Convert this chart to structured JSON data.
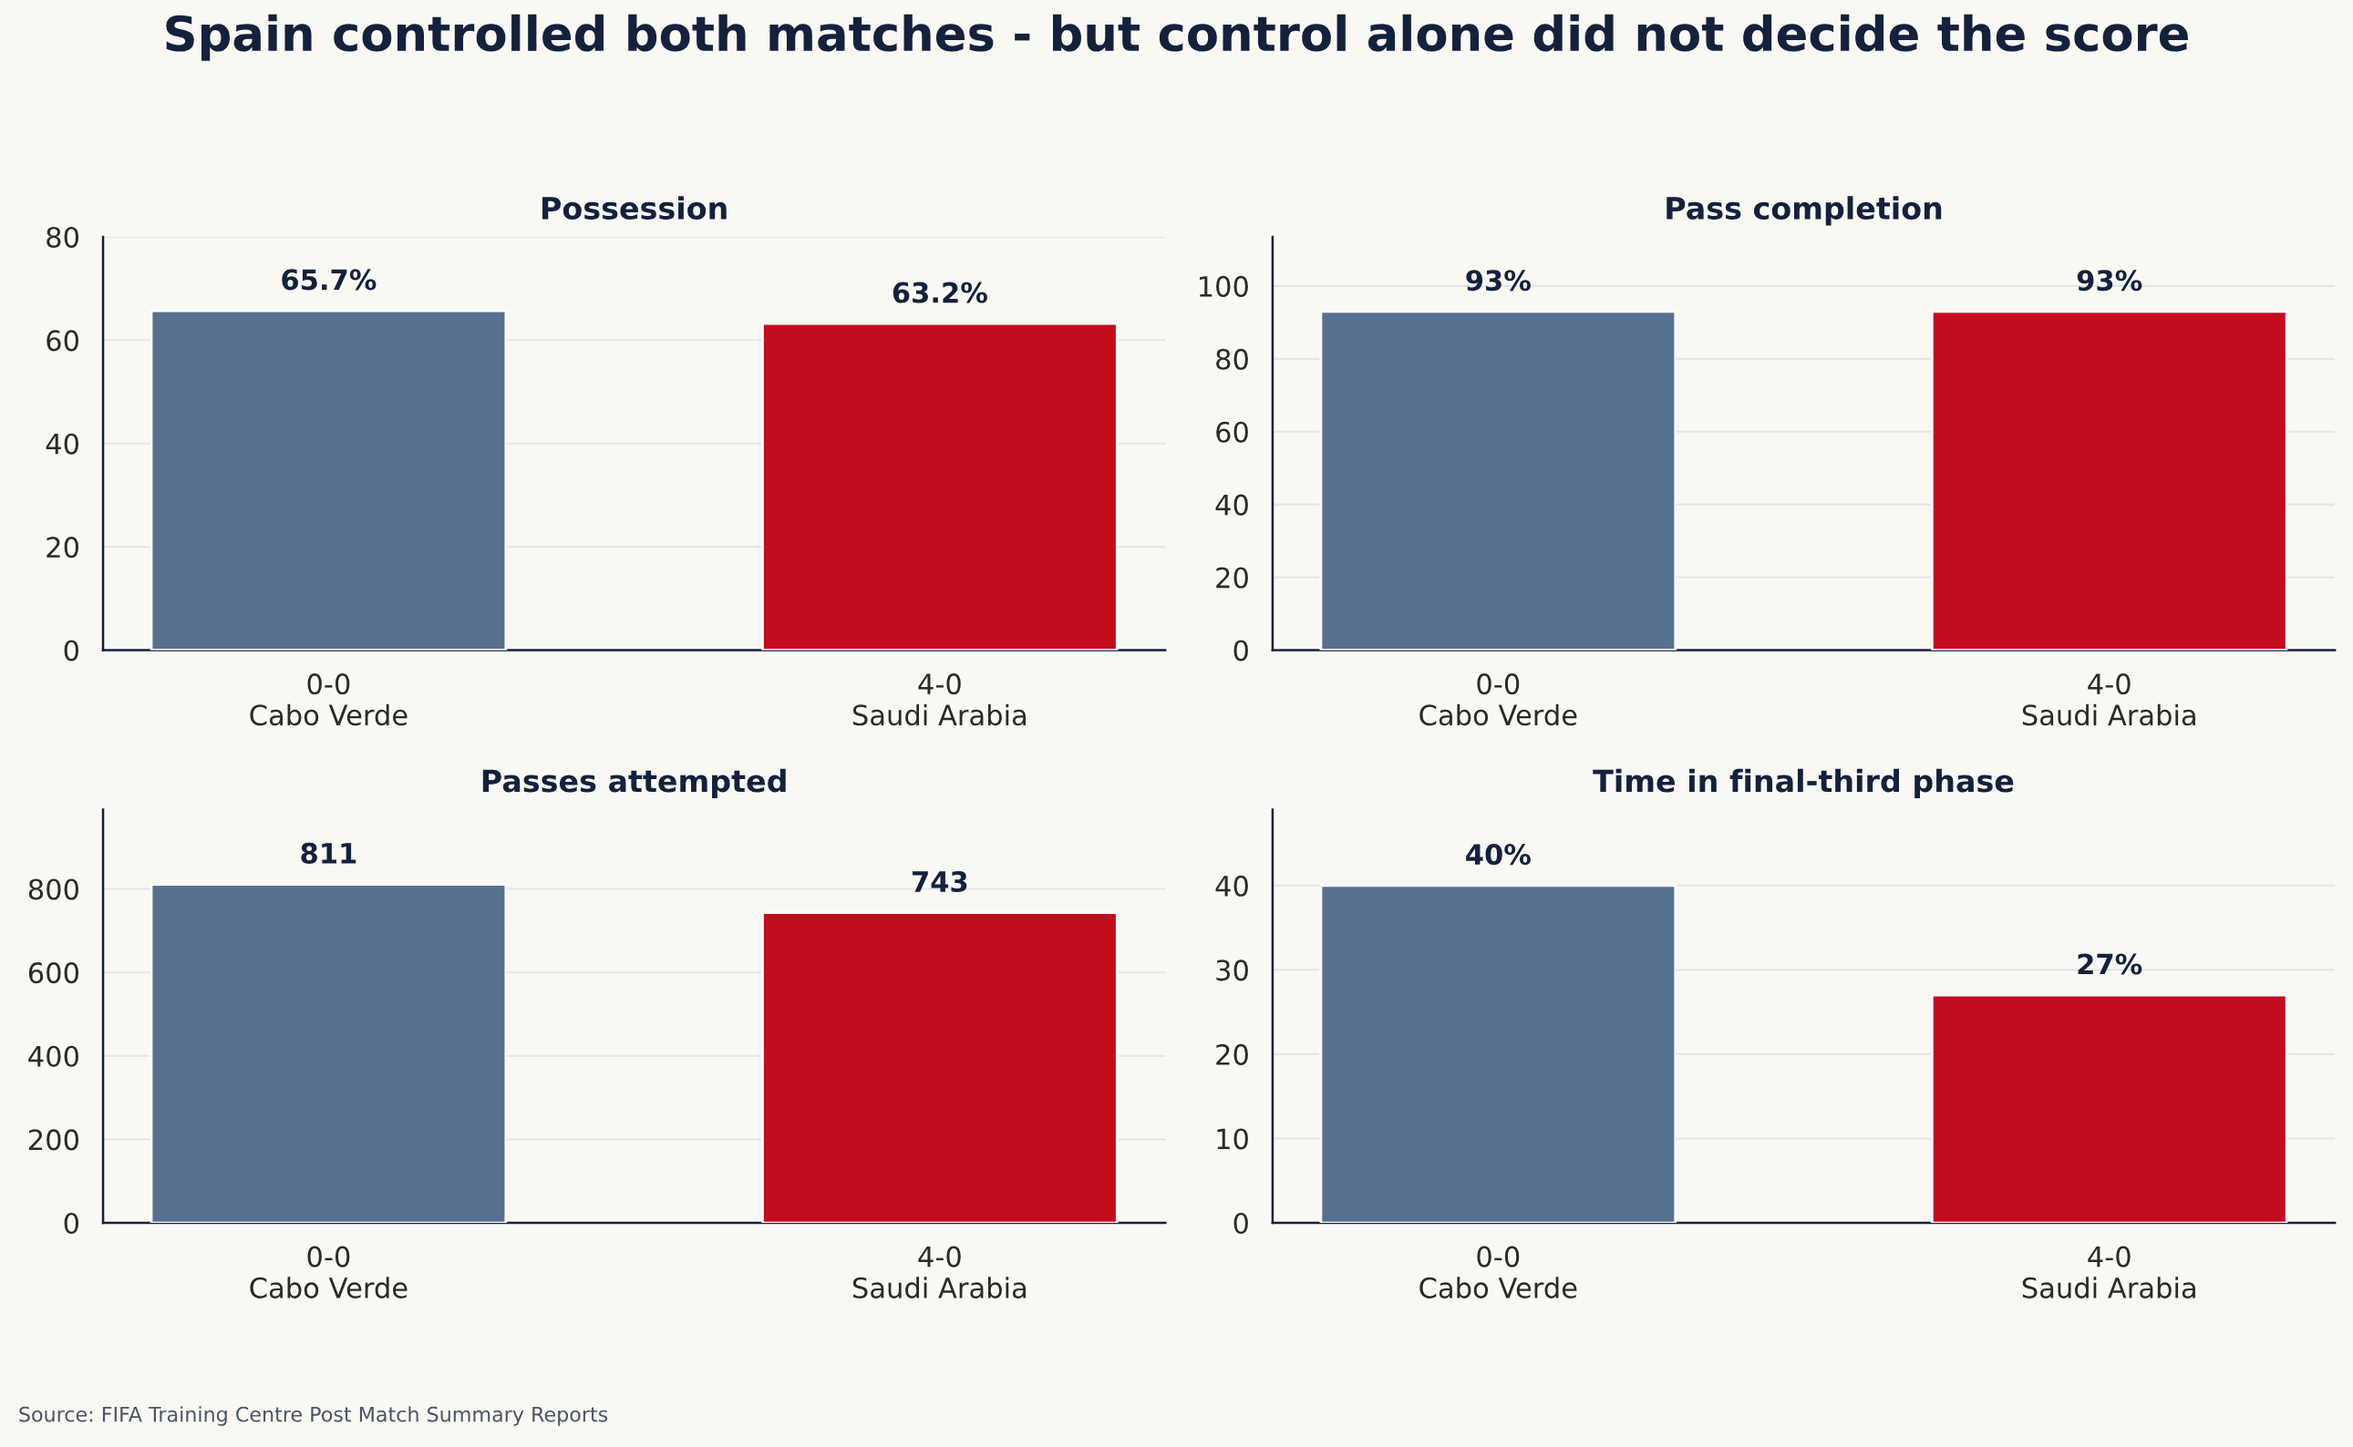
{
  "chart_data": [
    {
      "type": "other",
      "title": "Spain controlled both matches - but control alone did not decide the score",
      "annotations": [
        "Source: FIFA Training Centre Post Match Summary Reports"
      ]
    },
    {
      "type": "bar",
      "title": "Possession",
      "categories": [
        "0-0\nCabo Verde",
        "4-0\nSaudi Arabia"
      ],
      "values": [
        65.7,
        63.2
      ],
      "colors": [
        "#58708f",
        "#c40c1f"
      ],
      "value_labels": [
        "65.7%",
        "63.2%"
      ],
      "ylim": [
        0,
        80
      ],
      "yticks": [
        0,
        20,
        40,
        60,
        80
      ],
      "grid": "y"
    },
    {
      "type": "bar",
      "title": "Pass completion",
      "categories": [
        "0-0\nCabo Verde",
        "4-0\nSaudi Arabia"
      ],
      "values": [
        93,
        93
      ],
      "colors": [
        "#58708f",
        "#c40c1f"
      ],
      "value_labels": [
        "93%",
        "93%"
      ],
      "ylim": [
        0,
        113.5
      ],
      "yticks": [
        0,
        20,
        40,
        60,
        80,
        100
      ],
      "grid": "y"
    },
    {
      "type": "bar",
      "title": "Passes attempted",
      "categories": [
        "0-0\nCabo Verde",
        "4-0\nSaudi Arabia"
      ],
      "values": [
        811,
        743
      ],
      "colors": [
        "#58708f",
        "#c40c1f"
      ],
      "data_labels": true,
      "ylim": [
        0,
        990
      ],
      "yticks": [
        0,
        200,
        400,
        600,
        800
      ],
      "grid": "y"
    },
    {
      "type": "bar",
      "title": "Time in final-third phase",
      "categories": [
        "0-0\nCabo Verde",
        "4-0\nSaudi Arabia"
      ],
      "values": [
        40,
        27
      ],
      "colors": [
        "#58708f",
        "#c40c1f"
      ],
      "value_labels": [
        "40%",
        "27%"
      ],
      "ylim": [
        0,
        49
      ],
      "yticks": [
        0,
        10,
        20,
        30,
        40
      ],
      "grid": "y"
    }
  ]
}
